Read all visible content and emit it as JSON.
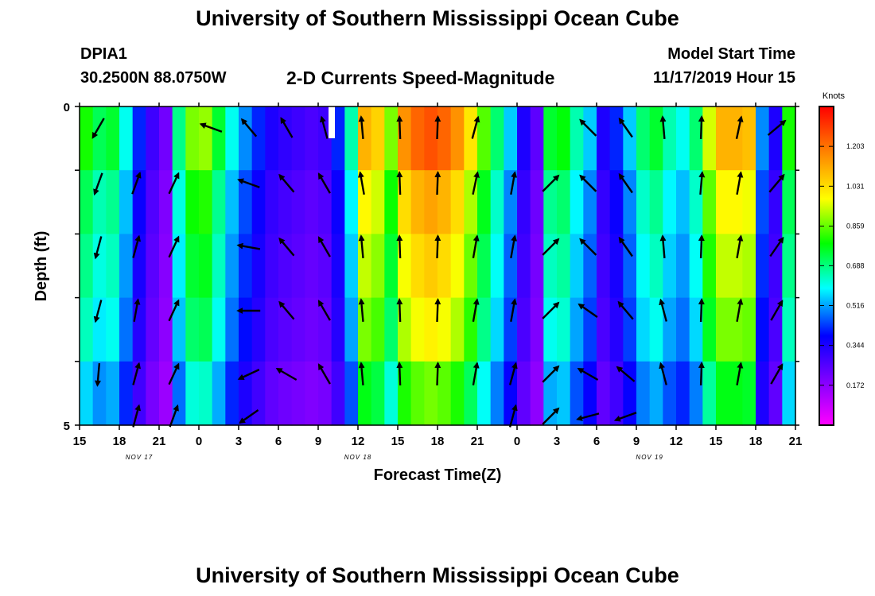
{
  "header": {
    "title": "University of Southern Mississippi Ocean Cube",
    "station": "DPIA1",
    "coords": "30.2500N 88.0750W",
    "subtitle": "2-D Currents Speed-Magnitude",
    "model_label": "Model Start Time",
    "model_time": "11/17/2019 Hour 15"
  },
  "footer": {
    "title": "University of Southern Mississippi Ocean Cube"
  },
  "chart_data": {
    "type": "heatmap",
    "title": "2-D Currents Speed-Magnitude",
    "xlabel": "Forecast Time(Z)",
    "ylabel": "Depth (ft)",
    "x_ticks": [
      "15",
      "18",
      "21",
      "0",
      "3",
      "6",
      "9",
      "12",
      "15",
      "18",
      "21",
      "0",
      "3",
      "6",
      "9",
      "12",
      "15",
      "18",
      "21"
    ],
    "date_labels": [
      {
        "label": "NOV 17",
        "hour_index": 4.5
      },
      {
        "label": "NOV 18",
        "hour_index": 21
      },
      {
        "label": "NOV 19",
        "hour_index": 43
      }
    ],
    "y_ticks": [
      "0",
      "5"
    ],
    "ylim": [
      0,
      5
    ],
    "hours": 54,
    "depth_layers": 5,
    "colorbar": {
      "unit": "Knots",
      "ticks": [
        "1.203",
        "1.031",
        "0.859",
        "0.688",
        "0.516",
        "0.344",
        "0.172"
      ],
      "range": [
        0.0,
        1.375
      ],
      "colors": [
        "#ff00ff",
        "#8000ff",
        "#0000ff",
        "#00ffff",
        "#00ff00",
        "#ffff00",
        "#ff8000",
        "#ff0000"
      ]
    },
    "speed_profile": [
      0.8,
      0.72,
      0.75,
      0.6,
      0.42,
      0.3,
      0.22,
      0.68,
      0.88,
      0.9,
      0.75,
      0.6,
      0.5,
      0.42,
      0.35,
      0.32,
      0.3,
      0.28,
      0.3,
      0.42,
      0.65,
      1.1,
      1.05,
      0.88,
      1.15,
      1.22,
      1.25,
      1.22,
      1.15,
      1.02,
      0.85,
      0.7,
      0.55,
      0.35,
      0.25,
      0.75,
      0.78,
      0.65,
      0.55,
      0.35,
      0.42,
      0.55,
      0.7,
      0.75,
      0.65,
      0.6,
      0.7,
      0.95,
      1.1,
      1.1,
      1.08,
      0.5,
      0.35,
      0.8
    ],
    "depth_factors": [
      1.0,
      0.9,
      0.85,
      0.8,
      0.7
    ],
    "arrow_rows": [
      {
        "layer": 0,
        "vectors": [
          [
            1.0,
            210
          ],
          [
            null,
            null
          ],
          [
            null,
            null
          ],
          [
            3.5,
            290
          ],
          [
            4.8,
            320
          ],
          [
            6.2,
            330
          ],
          [
            7.8,
            345
          ],
          [
            9.0,
            355
          ],
          [
            12.0,
            358
          ],
          [
            15.0,
            2
          ],
          [
            17.5,
            15
          ],
          [
            null,
            null
          ],
          [
            null,
            null
          ],
          [
            4.0,
            315
          ],
          [
            6.5,
            325
          ],
          [
            9.0,
            355
          ],
          [
            12.0,
            2
          ],
          [
            14.5,
            12
          ],
          [
            16.8,
            50
          ]
        ]
      },
      {
        "layer": 1,
        "vectors": [
          [
            1.0,
            200
          ],
          [
            3.0,
            20
          ],
          [
            6.0,
            25
          ],
          [
            null,
            null
          ],
          [
            3.5,
            290
          ],
          [
            4.8,
            320
          ],
          [
            7.0,
            330
          ],
          [
            9.0,
            350
          ],
          [
            12.0,
            358
          ],
          [
            15.0,
            2
          ],
          [
            17.5,
            12
          ],
          [
            2.8,
            10
          ],
          [
            5.0,
            45
          ],
          [
            4.0,
            315
          ],
          [
            6.5,
            325
          ],
          [
            null,
            null
          ],
          [
            12.0,
            5
          ],
          [
            14.5,
            10
          ],
          [
            16.8,
            40
          ]
        ]
      },
      {
        "layer": 2,
        "vectors": [
          [
            1.0,
            195
          ],
          [
            3.0,
            15
          ],
          [
            6.0,
            25
          ],
          [
            null,
            null
          ],
          [
            3.5,
            280
          ],
          [
            4.8,
            320
          ],
          [
            7.0,
            330
          ],
          [
            9.0,
            355
          ],
          [
            12.0,
            358
          ],
          [
            15.0,
            2
          ],
          [
            17.5,
            10
          ],
          [
            2.8,
            10
          ],
          [
            5.0,
            45
          ],
          [
            4.0,
            315
          ],
          [
            6.5,
            325
          ],
          [
            9.0,
            355
          ],
          [
            12.0,
            2
          ],
          [
            14.5,
            10
          ],
          [
            16.8,
            35
          ]
        ]
      },
      {
        "layer": 3,
        "vectors": [
          [
            1.0,
            195
          ],
          [
            3.0,
            10
          ],
          [
            6.0,
            25
          ],
          [
            null,
            null
          ],
          [
            3.5,
            270
          ],
          [
            4.8,
            320
          ],
          [
            7.0,
            330
          ],
          [
            9.0,
            355
          ],
          [
            12.0,
            358
          ],
          [
            15.0,
            2
          ],
          [
            17.5,
            10
          ],
          [
            2.8,
            10
          ],
          [
            5.0,
            45
          ],
          [
            4.0,
            305
          ],
          [
            6.5,
            320
          ],
          [
            9.0,
            345
          ],
          [
            12.0,
            2
          ],
          [
            14.5,
            10
          ],
          [
            16.8,
            30
          ]
        ]
      },
      {
        "layer": 4,
        "vectors": [
          [
            1.0,
            185
          ],
          [
            3.0,
            15
          ],
          [
            6.0,
            25
          ],
          [
            null,
            null
          ],
          [
            3.5,
            245
          ],
          [
            4.8,
            300
          ],
          [
            7.0,
            330
          ],
          [
            9.0,
            355
          ],
          [
            12.0,
            358
          ],
          [
            15.0,
            2
          ],
          [
            17.5,
            10
          ],
          [
            2.8,
            15
          ],
          [
            5.0,
            45
          ],
          [
            4.0,
            300
          ],
          [
            6.5,
            310
          ],
          [
            9.0,
            345
          ],
          [
            12.0,
            2
          ],
          [
            14.5,
            10
          ],
          [
            16.8,
            30
          ]
        ]
      },
      {
        "layer": 5,
        "vectors": [
          [
            null,
            null
          ],
          [
            3.0,
            15
          ],
          [
            6.0,
            20
          ],
          [
            null,
            null
          ],
          [
            3.5,
            235
          ],
          [
            null,
            null
          ],
          [
            null,
            null
          ],
          [
            null,
            null
          ],
          [
            null,
            null
          ],
          [
            null,
            null
          ],
          [
            null,
            null
          ],
          [
            2.8,
            15
          ],
          [
            5.0,
            45
          ],
          [
            4.0,
            255
          ],
          [
            6.5,
            250
          ],
          [
            null,
            null
          ],
          [
            null,
            null
          ],
          [
            null,
            null
          ],
          [
            null,
            null
          ]
        ]
      }
    ]
  }
}
